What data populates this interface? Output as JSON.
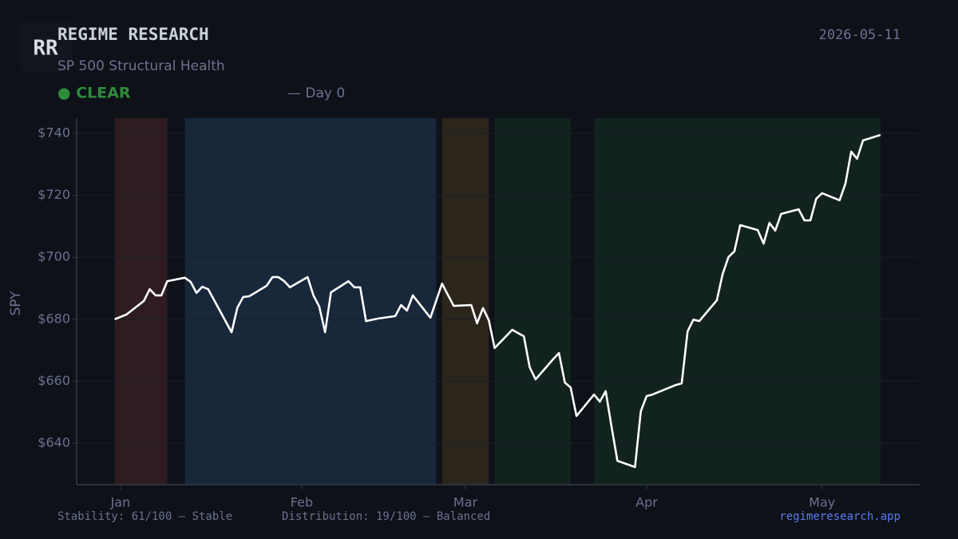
{
  "header": {
    "logo": "RR",
    "title": "REGIME RESEARCH",
    "date": "2026-05-11",
    "subtitle": "SP 500 Structural Health",
    "status": "● CLEAR",
    "day": "— Day 0"
  },
  "chart_data": {
    "type": "line",
    "y_label": "SPY",
    "color": "#ffffff",
    "grid": true,
    "x": [
      -1,
      1,
      4,
      5,
      6,
      7,
      8,
      11,
      12,
      13,
      14,
      15,
      19,
      20,
      21,
      22,
      25,
      26,
      27,
      28,
      29,
      32,
      33,
      34,
      35,
      36,
      39,
      40,
      41,
      42,
      44,
      47,
      48,
      49,
      50,
      53,
      55,
      57,
      60,
      61,
      62,
      63,
      64,
      67,
      69,
      70,
      71,
      74,
      75,
      76,
      77,
      78,
      81,
      82,
      83,
      84,
      85,
      88,
      89,
      90,
      91,
      95,
      96,
      97,
      98,
      99,
      102,
      103,
      104,
      105,
      106,
      109,
      110,
      111,
      112,
      113,
      116,
      117,
      118,
      119,
      120,
      123,
      124,
      125,
      126,
      127,
      130
    ],
    "values": [
      680.0,
      681.5,
      685.9,
      689.7,
      687.7,
      687.7,
      692.3,
      693.4,
      692.1,
      688.5,
      690.5,
      689.7,
      675.8,
      683.8,
      687.2,
      687.4,
      690.8,
      693.6,
      693.6,
      692.3,
      690.3,
      693.6,
      687.7,
      684.1,
      675.8,
      688.7,
      692.3,
      690.3,
      690.3,
      679.4,
      680.2,
      681.0,
      684.6,
      682.8,
      687.7,
      680.5,
      691.5,
      684.3,
      684.6,
      678.7,
      683.6,
      679.7,
      670.7,
      676.6,
      674.5,
      664.5,
      660.6,
      667.1,
      669.1,
      659.6,
      658.0,
      648.8,
      655.7,
      653.4,
      656.8,
      645.2,
      634.3,
      632.3,
      650.3,
      655.2,
      655.7,
      658.8,
      659.3,
      676.1,
      679.9,
      679.4,
      686.1,
      694.6,
      700.1,
      701.9,
      710.4,
      708.8,
      704.4,
      711.1,
      708.6,
      714.0,
      715.5,
      711.9,
      711.9,
      718.9,
      720.7,
      718.4,
      723.8,
      734.1,
      731.8,
      737.7,
      739.5
    ],
    "regimes": [
      {
        "start": -1,
        "end": 8,
        "color": "#2e1c20"
      },
      {
        "start": 11,
        "end": 54,
        "color": "#18273a"
      },
      {
        "start": 55,
        "end": 63,
        "color": "#2b251b"
      },
      {
        "start": 64,
        "end": 77,
        "color": "#12221e"
      },
      {
        "start": 81,
        "end": 130,
        "color": "#12221e"
      }
    ],
    "xlim": [
      -7.5,
      136.7
    ],
    "ylim": [
      626.6,
      744.9
    ],
    "xticks": [
      {
        "value": 0,
        "label": "Jan"
      },
      {
        "value": 31,
        "label": "Feb"
      },
      {
        "value": 59,
        "label": "Mar"
      },
      {
        "value": 90,
        "label": "Apr"
      },
      {
        "value": 120,
        "label": "May"
      }
    ],
    "yticks": [
      {
        "value": 640,
        "label": "$640"
      },
      {
        "value": 660,
        "label": "$660"
      },
      {
        "value": 680,
        "label": "$680"
      },
      {
        "value": 700,
        "label": "$700"
      },
      {
        "value": 720,
        "label": "$720"
      },
      {
        "value": 740,
        "label": "$740"
      }
    ]
  },
  "footer": {
    "stability": "Stability: 61/100 — Stable",
    "distribution": "Distribution: 19/100 — Balanced",
    "link": "regimeresearch.app"
  }
}
